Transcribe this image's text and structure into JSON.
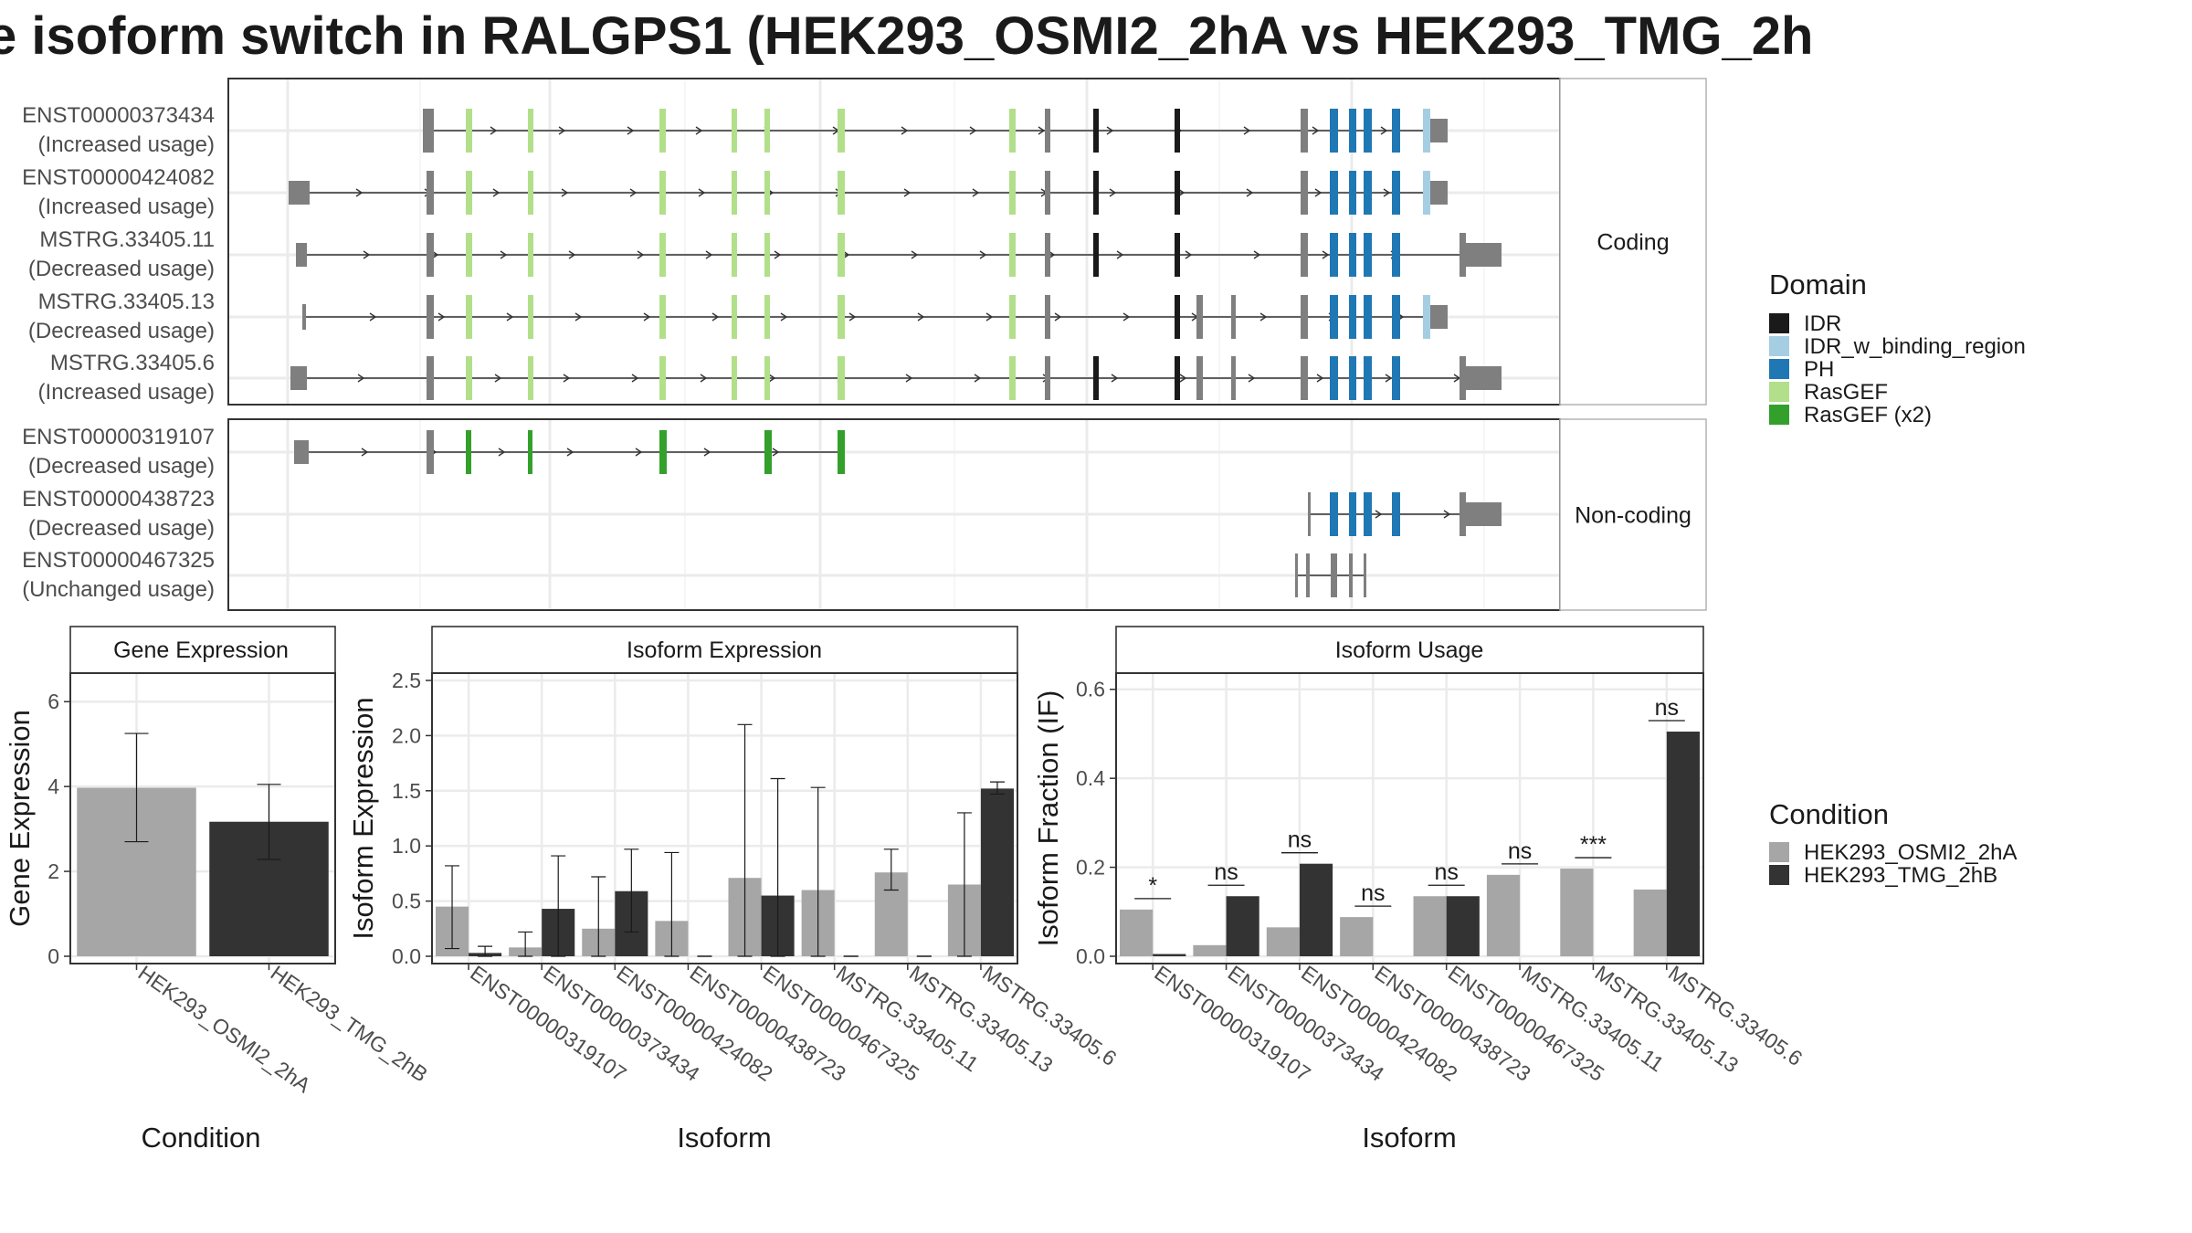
{
  "title": "e isoform switch in RALGPS1 (HEK293_OSMI2_2hA vs HEK293_TMG_2h",
  "colors": {
    "exon": "#7f7f7f",
    "IDR": "#1a1a1a",
    "IDR_w_binding_region": "#a6cee3",
    "PH": "#1f78b4",
    "RasGEF": "#b2df8a",
    "RasGEF (x2)": "#33a02c",
    "condition_a": "#a6a6a6",
    "condition_b": "#333333"
  },
  "structure": {
    "facets": [
      "Coding",
      "Non-coding"
    ],
    "isoforms": [
      {
        "id": "ENST00000373434",
        "usage": "(Increased usage)",
        "group": "Coding"
      },
      {
        "id": "ENST00000424082",
        "usage": "(Increased usage)",
        "group": "Coding"
      },
      {
        "id": "MSTRG.33405.11",
        "usage": "(Decreased usage)",
        "group": "Coding"
      },
      {
        "id": "MSTRG.33405.13",
        "usage": "(Decreased usage)",
        "group": "Coding"
      },
      {
        "id": "MSTRG.33405.6",
        "usage": "(Increased usage)",
        "group": "Coding"
      },
      {
        "id": "ENST00000319107",
        "usage": "(Decreased usage)",
        "group": "Non-coding"
      },
      {
        "id": "ENST00000438723",
        "usage": "(Decreased usage)",
        "group": "Non-coding"
      },
      {
        "id": "ENST00000467325",
        "usage": "(Unchanged usage)",
        "group": "Non-coding"
      }
    ]
  },
  "legends": {
    "domain_title": "Domain",
    "domains": [
      "IDR",
      "IDR_w_binding_region",
      "PH",
      "RasGEF",
      "RasGEF (x2)"
    ],
    "condition_title": "Condition",
    "conditions": [
      "HEK293_OSMI2_2hA",
      "HEK293_TMG_2hB"
    ]
  },
  "chart_data": [
    {
      "type": "bar",
      "title": "Gene Expression",
      "xlabel": "Condition",
      "ylabel": "Gene Expression",
      "ylim": [
        0,
        6.5
      ],
      "yticks": [
        0,
        2,
        4,
        6
      ],
      "categories": [
        "HEK293_OSMI2_2hA",
        "HEK293_TMG_2hB"
      ],
      "values": [
        3.97,
        3.17
      ],
      "error_low": [
        2.7,
        2.28
      ],
      "error_high": [
        5.25,
        4.05
      ]
    },
    {
      "type": "bar",
      "title": "Isoform Expression",
      "xlabel": "Isoform",
      "ylabel": "Isoform Expression",
      "ylim": [
        0,
        2.5
      ],
      "yticks": [
        0.0,
        0.5,
        1.0,
        1.5,
        2.0,
        2.5
      ],
      "categories": [
        "ENST00000319107",
        "ENST00000373434",
        "ENST00000424082",
        "ENST00000438723",
        "ENST00000467325",
        "MSTRG.33405.11",
        "MSTRG.33405.13",
        "MSTRG.33405.6"
      ],
      "series": [
        {
          "name": "HEK293_OSMI2_2hA",
          "values": [
            0.45,
            0.08,
            0.25,
            0.32,
            0.71,
            0.6,
            0.76,
            0.65
          ],
          "error_low": [
            0.07,
            0.0,
            0.0,
            0.0,
            0.0,
            0.0,
            0.6,
            0.0
          ],
          "error_high": [
            0.82,
            0.22,
            0.72,
            0.94,
            2.1,
            1.53,
            0.97,
            1.3
          ]
        },
        {
          "name": "HEK293_TMG_2hB",
          "values": [
            0.03,
            0.43,
            0.59,
            0.0,
            0.55,
            0.0,
            0.0,
            1.52
          ],
          "error_low": [
            0.0,
            0.0,
            0.22,
            0.0,
            0.0,
            0.0,
            0.0,
            1.47
          ],
          "error_high": [
            0.09,
            0.91,
            0.97,
            0.0,
            1.61,
            0.0,
            0.0,
            1.58
          ]
        }
      ]
    },
    {
      "type": "bar",
      "title": "Isoform Usage",
      "xlabel": "Isoform",
      "ylabel": "Isoform Fraction (IF)",
      "ylim": [
        0,
        0.62
      ],
      "yticks": [
        0.0,
        0.2,
        0.4,
        0.6
      ],
      "categories": [
        "ENST00000319107",
        "ENST00000373434",
        "ENST00000424082",
        "ENST00000438723",
        "ENST00000467325",
        "MSTRG.33405.11",
        "MSTRG.33405.13",
        "MSTRG.33405.6"
      ],
      "series": [
        {
          "name": "HEK293_OSMI2_2hA",
          "values": [
            0.105,
            0.025,
            0.065,
            0.088,
            0.135,
            0.183,
            0.197,
            0.15
          ]
        },
        {
          "name": "HEK293_TMG_2hB",
          "values": [
            0.005,
            0.135,
            0.208,
            0.0,
            0.135,
            0.0,
            0.0,
            0.505
          ]
        }
      ],
      "significance": [
        "*",
        "ns",
        "ns",
        "ns",
        "ns",
        "ns",
        "***",
        "ns"
      ]
    }
  ]
}
